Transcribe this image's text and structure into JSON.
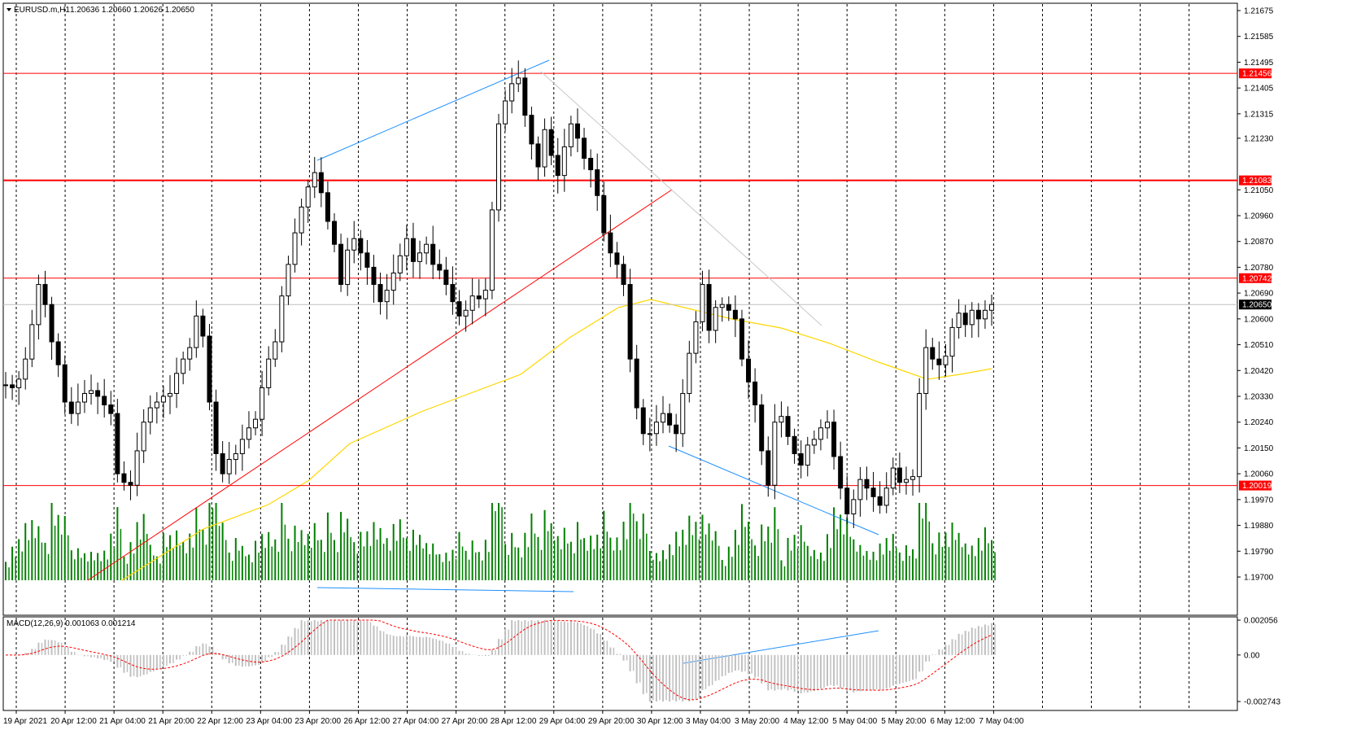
{
  "header": {
    "symbol": "EURUSD.m,H1",
    "ohlc": "1.20636 1.20660 1.20626 1.20650"
  },
  "price_axis": {
    "labels": [
      "1.21675",
      "1.21585",
      "1.21495",
      "1.21405",
      "1.21315",
      "1.21230",
      "1.21050",
      "1.20960",
      "1.20870",
      "1.20780",
      "1.20690",
      "1.20600",
      "1.20510",
      "1.20420",
      "1.20330",
      "1.20240",
      "1.20150",
      "1.20060",
      "1.19970",
      "1.19880",
      "1.19790",
      "1.19700"
    ]
  },
  "price_tags": {
    "items": [
      {
        "label": "1.21456",
        "value": 1.21456,
        "color": "#ff0000"
      },
      {
        "label": "1.21083",
        "value": 1.21083,
        "color": "#ff0000"
      },
      {
        "label": "1.20742",
        "value": 1.20742,
        "color": "#ff0000"
      },
      {
        "label": "1.20650",
        "value": 1.2065,
        "color": "#000000"
      },
      {
        "label": "1.20019",
        "value": 1.20019,
        "color": "#ff0000"
      }
    ]
  },
  "macd": {
    "title": "MACD(12,26,9) 0.001063 0.001214",
    "axis_labels": [
      "0.002056",
      "0.00",
      "-0.002743"
    ]
  },
  "time_axis": {
    "labels": [
      "19 Apr 2021",
      "20 Apr 12:00",
      "21 Apr 04:00",
      "21 Apr 20:00",
      "22 Apr 12:00",
      "23 Apr 04:00",
      "23 Apr 20:00",
      "26 Apr 12:00",
      "27 Apr 04:00",
      "27 Apr 20:00",
      "28 Apr 12:00",
      "29 Apr 04:00",
      "29 Apr 20:00",
      "30 Apr 12:00",
      "3 May 04:00",
      "3 May 20:00",
      "4 May 12:00",
      "5 May 04:00",
      "5 May 20:00",
      "6 May 12:00",
      "7 May 04:00"
    ]
  },
  "colors": {
    "bull_candle": "#000000",
    "bear_candle": "#000000",
    "level_line": "#ff0000",
    "trend_blue": "#1e90ff",
    "trend_red": "#ff0000",
    "moving_average": "#ffd700",
    "volume": "#008000",
    "macd_hist": "#c0c0c0",
    "macd_signal": "#ff0000"
  },
  "chart_data": {
    "type": "candlestick",
    "symbol": "EURUSD.m",
    "timeframe": "H1",
    "price_range": [
      1.197,
      1.21675
    ],
    "approx_closes": [
      1.2037,
      1.2036,
      1.2039,
      1.2046,
      1.2058,
      1.2072,
      1.2065,
      1.2052,
      1.2044,
      1.2031,
      1.2027,
      1.2031,
      1.2034,
      1.2035,
      1.2033,
      1.203,
      1.2027,
      1.2006,
      1.2003,
      1.2002,
      1.2014,
      1.2024,
      1.2029,
      1.2031,
      1.2033,
      1.2034,
      1.2041,
      1.2046,
      1.205,
      1.2061,
      1.2054,
      1.2031,
      1.2013,
      1.2006,
      1.2011,
      1.2013,
      1.2018,
      1.2022,
      1.2025,
      1.2036,
      1.2046,
      1.2052,
      1.2068,
      1.2079,
      1.209,
      1.2099,
      1.2106,
      1.2111,
      1.2104,
      1.2094,
      1.2086,
      1.2072,
      1.2084,
      1.2088,
      1.2083,
      1.2078,
      1.2072,
      1.2066,
      1.207,
      1.2076,
      1.2082,
      1.2088,
      1.208,
      1.2083,
      1.2086,
      1.2079,
      1.2077,
      1.2072,
      1.2066,
      1.2061,
      1.2063,
      1.2068,
      1.2067,
      1.207,
      1.2098,
      1.2128,
      1.2136,
      1.2142,
      1.2144,
      1.2131,
      1.2121,
      1.2113,
      1.2126,
      1.2117,
      1.211,
      1.212,
      1.2128,
      1.2123,
      1.2116,
      1.2112,
      1.2103,
      1.209,
      1.2083,
      1.2079,
      1.2072,
      1.2046,
      1.2029,
      1.202,
      1.202,
      1.2024,
      1.2027,
      1.2023,
      1.202,
      1.2034,
      1.2048,
      1.2059,
      1.2072,
      1.2056,
      1.2064,
      1.2065,
      1.2063,
      1.206,
      1.2046,
      1.2038,
      1.203,
      1.2014,
      1.2002,
      1.2024,
      1.2026,
      1.2019,
      1.2013,
      1.2009,
      1.2016,
      1.2018,
      1.2022,
      1.2024,
      1.2012,
      1.2001,
      1.1992,
      1.1997,
      1.2004,
      1.2001,
      1.1998,
      1.1995,
      1.2001,
      1.2008,
      1.2003,
      1.2004,
      1.2005,
      1.2034,
      1.205,
      1.2046,
      1.2044,
      1.2047,
      1.2057,
      1.2062,
      1.2058,
      1.2063,
      1.206,
      1.2063,
      1.2065
    ]
  }
}
